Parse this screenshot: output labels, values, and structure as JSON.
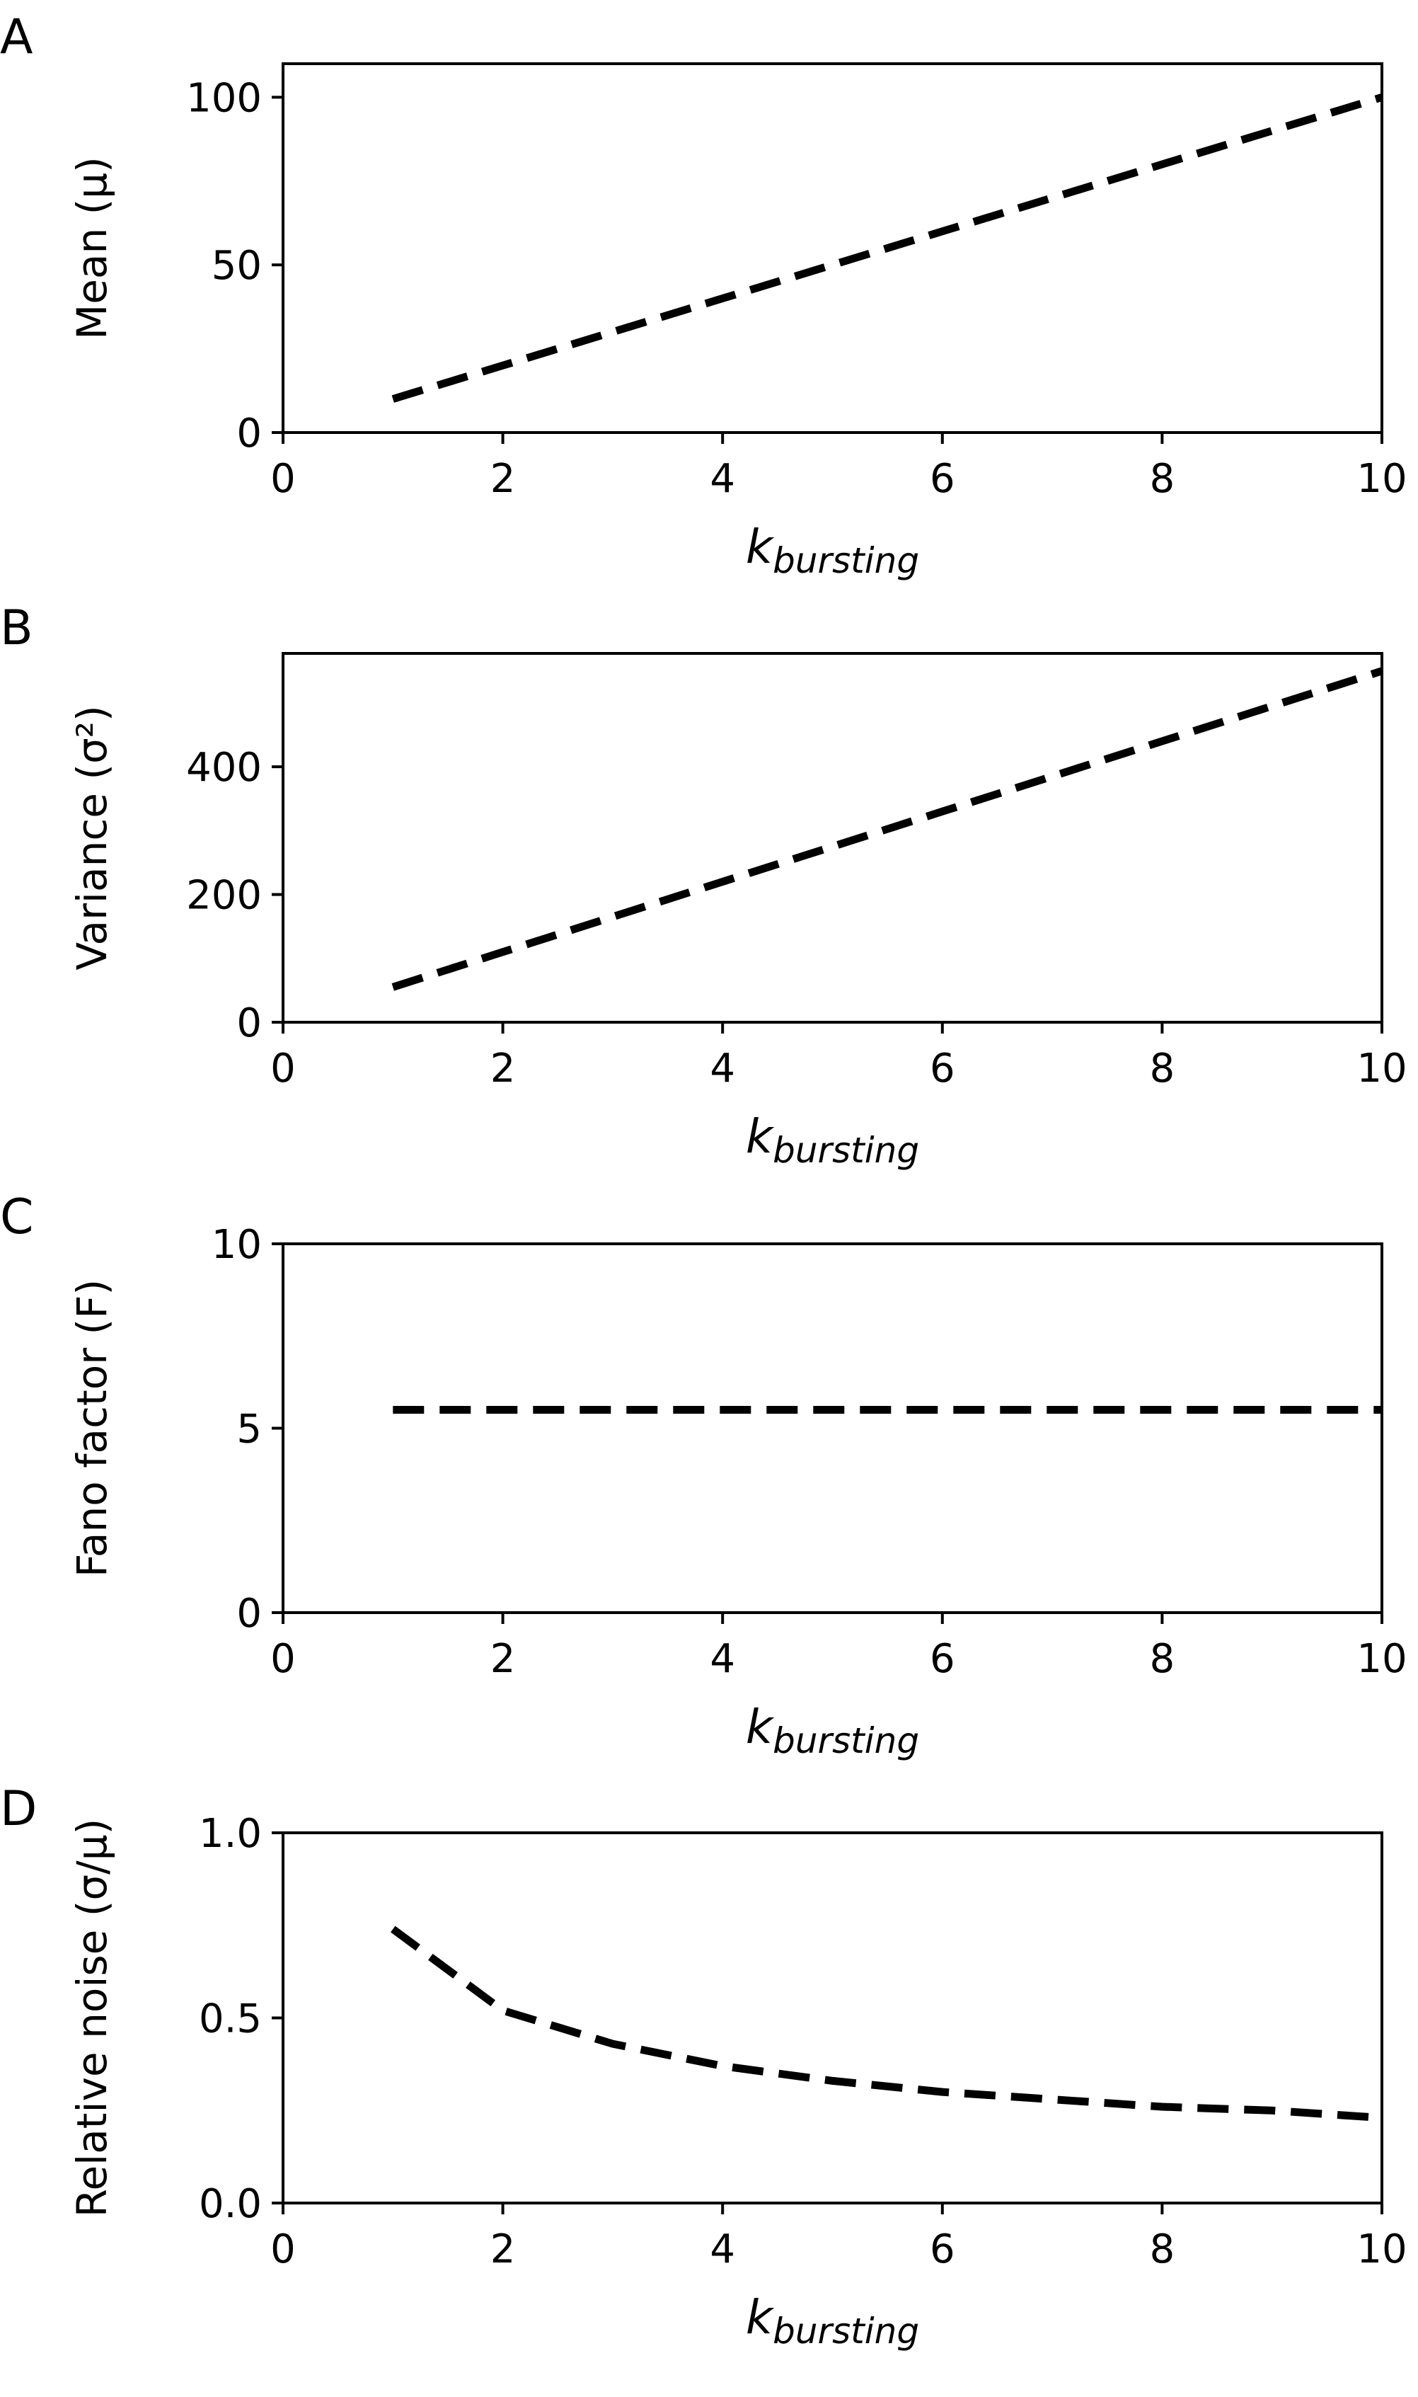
{
  "chart_data": [
    {
      "type": "line",
      "panel_label": "A",
      "x": [
        1,
        2,
        3,
        4,
        5,
        6,
        7,
        8,
        9,
        10
      ],
      "series": [
        {
          "values": [
            10,
            20,
            30,
            40,
            50,
            60,
            70,
            80,
            90,
            100
          ],
          "style": "dashed",
          "color": "#000000"
        }
      ],
      "xlabel": "k",
      "xlabel_sub": "bursting",
      "ylabel": "Mean (μ)",
      "xlim": [
        0,
        10
      ],
      "ylim": [
        0,
        110
      ],
      "xticks": [
        0,
        2,
        4,
        6,
        8,
        10
      ],
      "yticks": [
        0,
        50,
        100
      ],
      "grid": false
    },
    {
      "type": "line",
      "panel_label": "B",
      "x": [
        1,
        2,
        3,
        4,
        5,
        6,
        7,
        8,
        9,
        10
      ],
      "series": [
        {
          "values": [
            55,
            110,
            165,
            220,
            275,
            330,
            385,
            440,
            495,
            550
          ],
          "style": "dashed",
          "color": "#000000"
        }
      ],
      "xlabel": "k",
      "xlabel_sub": "bursting",
      "ylabel": "Variance (σ²)",
      "xlim": [
        0,
        10
      ],
      "ylim": [
        0,
        577.5
      ],
      "xticks": [
        0,
        2,
        4,
        6,
        8,
        10
      ],
      "yticks": [
        0,
        200,
        400
      ],
      "grid": false
    },
    {
      "type": "line",
      "panel_label": "C",
      "x": [
        1,
        2,
        3,
        4,
        5,
        6,
        7,
        8,
        9,
        10
      ],
      "series": [
        {
          "values": [
            5.5,
            5.5,
            5.5,
            5.5,
            5.5,
            5.5,
            5.5,
            5.5,
            5.5,
            5.5
          ],
          "style": "dashed",
          "color": "#000000"
        }
      ],
      "xlabel": "k",
      "xlabel_sub": "bursting",
      "ylabel": "Fano factor (F)",
      "xlim": [
        0,
        10
      ],
      "ylim": [
        0,
        10
      ],
      "xticks": [
        0,
        2,
        4,
        6,
        8,
        10
      ],
      "yticks": [
        0,
        5,
        10
      ],
      "grid": false
    },
    {
      "type": "line",
      "panel_label": "D",
      "x": [
        1,
        2,
        3,
        4,
        5,
        6,
        7,
        8,
        9,
        10
      ],
      "series": [
        {
          "values": [
            0.74,
            0.52,
            0.43,
            0.37,
            0.33,
            0.3,
            0.28,
            0.26,
            0.25,
            0.23
          ],
          "style": "dashed",
          "color": "#000000"
        }
      ],
      "xlabel": "k",
      "xlabel_sub": "bursting",
      "ylabel": "Relative noise (σ/μ)",
      "xlim": [
        0,
        10
      ],
      "ylim": [
        0,
        1
      ],
      "xticks": [
        0,
        2,
        4,
        6,
        8,
        10
      ],
      "yticks": [
        "0.0",
        "0.5",
        "1.0"
      ],
      "grid": false
    }
  ]
}
